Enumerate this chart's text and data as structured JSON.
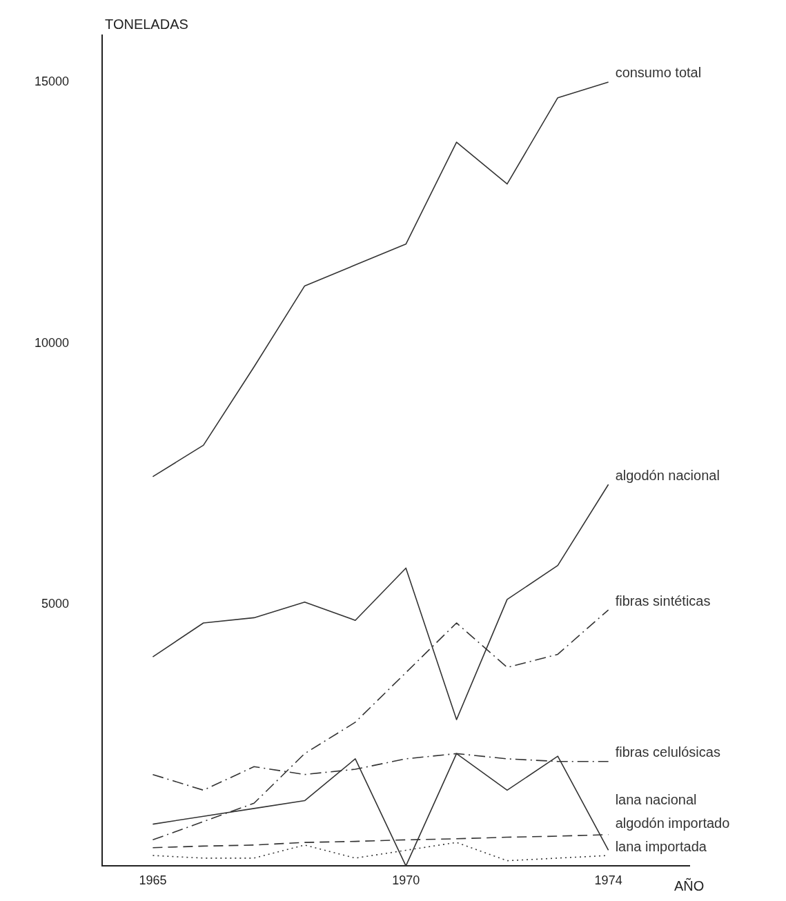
{
  "chart_data": {
    "type": "line",
    "ylabel": "TONELADAS",
    "xlabel": "AÑO",
    "x": [
      1965,
      1966,
      1967,
      1968,
      1969,
      1970,
      1971,
      1972,
      1973,
      1974
    ],
    "xlim": [
      1964,
      1975.6
    ],
    "xticks": [
      1965,
      1970,
      1974
    ],
    "ylim": [
      0,
      15900
    ],
    "yticks": [
      5000,
      10000,
      15000
    ],
    "grid": false,
    "legend": false,
    "marker": "none",
    "series": [
      {
        "name": "consumo total",
        "color": "#333333",
        "line_style": "solid",
        "values": [
          7450,
          8050,
          9550,
          11100,
          11500,
          11900,
          13850,
          13050,
          14700,
          15000
        ]
      },
      {
        "name": "algodón nacional",
        "color": "#333333",
        "line_style": "solid",
        "values": [
          4000,
          4650,
          4750,
          5050,
          4700,
          5700,
          2800,
          5100,
          5750,
          7300
        ]
      },
      {
        "name": "fibras sintéticas",
        "color": "#333333",
        "line_style": "dashdot",
        "values": [
          500,
          850,
          1200,
          2150,
          2750,
          3700,
          4650,
          3800,
          4050,
          4900
        ]
      },
      {
        "name": "fibras celulósicas",
        "color": "#333333",
        "line_style": "dashdot",
        "values": [
          1750,
          1450,
          1900,
          1750,
          1850,
          2050,
          2150,
          2050,
          2000,
          2000
        ]
      },
      {
        "name": "algodón importado",
        "color": "#333333",
        "line_style": "solid",
        "values": [
          800,
          950,
          1100,
          1250,
          2050,
          0,
          2150,
          1450,
          2100,
          300
        ]
      },
      {
        "name": "lana nacional",
        "color": "#333333",
        "line_style": "dashed",
        "values": [
          350,
          380,
          400,
          450,
          470,
          500,
          520,
          550,
          570,
          600
        ]
      },
      {
        "name": "lana importada",
        "color": "#333333",
        "line_style": "dotted",
        "values": [
          200,
          150,
          150,
          400,
          150,
          300,
          450,
          100,
          150,
          200
        ]
      }
    ]
  }
}
